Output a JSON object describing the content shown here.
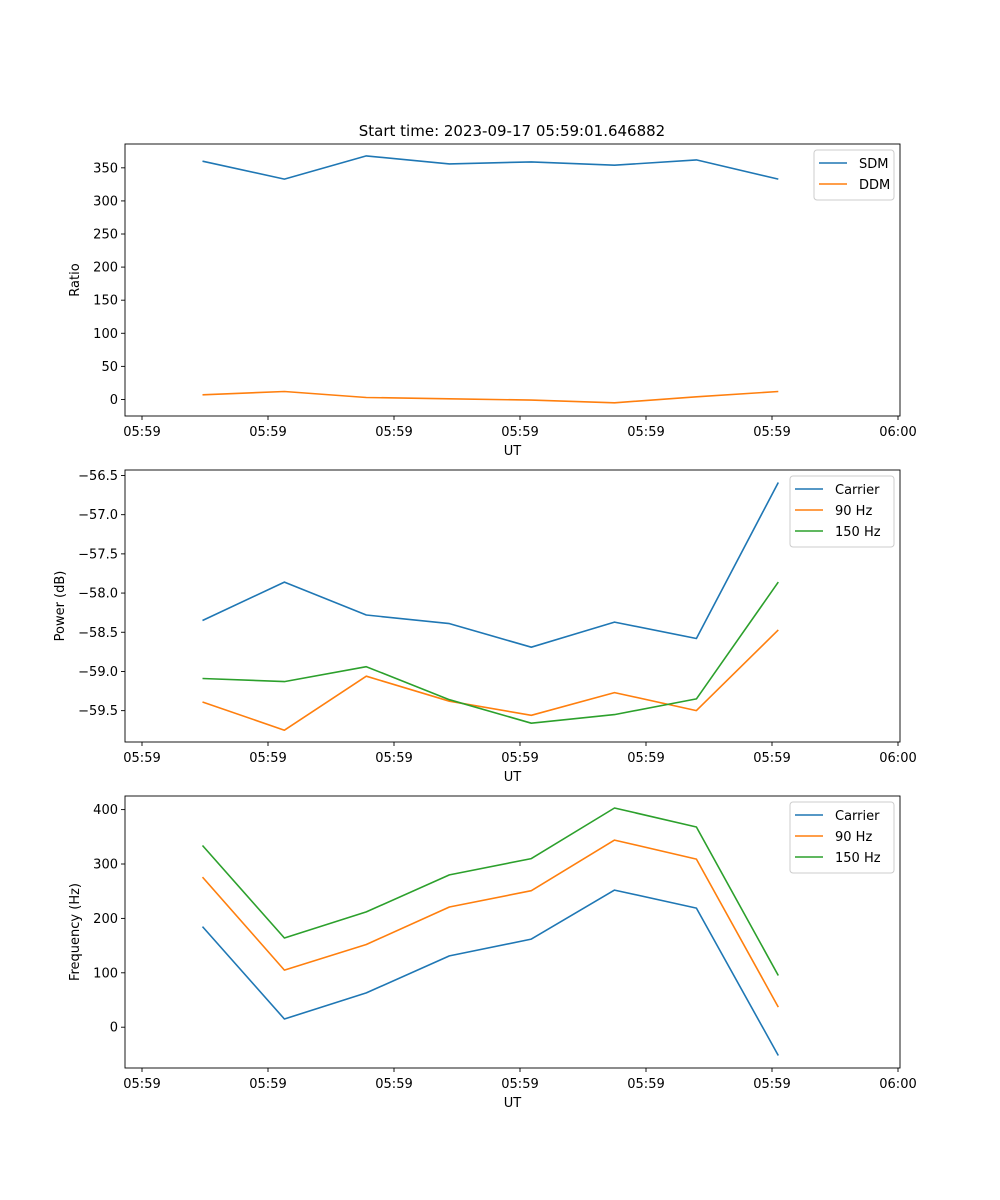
{
  "figure": {
    "title": "Start time: 2023-09-17 05:59:01.646882"
  },
  "chart_data": [
    {
      "type": "line",
      "title": "Start time: 2023-09-17 05:59:01.646882",
      "xlabel": "UT",
      "ylabel": "Ratio",
      "x_ticks": [
        "05:59",
        "05:59",
        "05:59",
        "05:59",
        "05:59",
        "05:59",
        "06:00"
      ],
      "xlim": [
        0,
        6
      ],
      "ylim": [
        -25,
        386
      ],
      "y_ticks": [
        0,
        50,
        100,
        150,
        200,
        250,
        300,
        350
      ],
      "x": [
        0.48,
        1.13,
        1.78,
        2.44,
        3.09,
        3.75,
        4.4,
        5.05
      ],
      "legend_position": "top-right",
      "series": [
        {
          "name": "SDM",
          "color": "#1f77b4",
          "values": [
            360,
            333,
            368,
            356,
            359,
            354,
            362,
            333
          ]
        },
        {
          "name": "DDM",
          "color": "#ff7f0e",
          "values": [
            7,
            12,
            3,
            1,
            -1,
            -5,
            4,
            12
          ]
        }
      ]
    },
    {
      "type": "line",
      "title": "",
      "xlabel": "UT",
      "ylabel": "Power (dB)",
      "x_ticks": [
        "05:59",
        "05:59",
        "05:59",
        "05:59",
        "05:59",
        "05:59",
        "06:00"
      ],
      "xlim": [
        0,
        6
      ],
      "ylim": [
        -59.9,
        -56.43
      ],
      "y_ticks": [
        "-56.5",
        "-57.0",
        "-57.5",
        "-58.0",
        "-58.5",
        "-59.0",
        "-59.5"
      ],
      "y_tick_values": [
        -56.5,
        -57.0,
        -57.5,
        -58.0,
        -58.5,
        -59.0,
        -59.5
      ],
      "x": [
        0.48,
        1.13,
        1.78,
        2.44,
        3.09,
        3.75,
        4.4,
        5.05
      ],
      "legend_position": "top-right",
      "series": [
        {
          "name": "Carrier",
          "color": "#1f77b4",
          "values": [
            -58.35,
            -57.86,
            -58.28,
            -58.39,
            -58.69,
            -58.37,
            -58.58,
            -56.59
          ]
        },
        {
          "name": "90 Hz",
          "color": "#ff7f0e",
          "values": [
            -59.39,
            -59.75,
            -59.06,
            -59.38,
            -59.56,
            -59.27,
            -59.5,
            -58.47
          ]
        },
        {
          "name": "150 Hz",
          "color": "#2ca02c",
          "values": [
            -59.09,
            -59.13,
            -58.94,
            -59.36,
            -59.66,
            -59.55,
            -59.35,
            -57.86
          ]
        }
      ]
    },
    {
      "type": "line",
      "title": "",
      "xlabel": "UT",
      "ylabel": "Frequency (Hz)",
      "x_ticks": [
        "05:59",
        "05:59",
        "05:59",
        "05:59",
        "05:59",
        "05:59",
        "06:00"
      ],
      "xlim": [
        0,
        6
      ],
      "ylim": [
        -75,
        425
      ],
      "y_ticks": [
        0,
        100,
        200,
        300,
        400
      ],
      "x": [
        0.48,
        1.13,
        1.78,
        2.44,
        3.09,
        3.75,
        4.4,
        5.05
      ],
      "legend_position": "top-right",
      "series": [
        {
          "name": "Carrier",
          "color": "#1f77b4",
          "values": [
            185,
            15,
            63,
            131,
            162,
            252,
            219,
            -52
          ]
        },
        {
          "name": "90 Hz",
          "color": "#ff7f0e",
          "values": [
            276,
            105,
            152,
            221,
            251,
            344,
            309,
            37
          ]
        },
        {
          "name": "150 Hz",
          "color": "#2ca02c",
          "values": [
            334,
            164,
            212,
            280,
            310,
            403,
            368,
            95
          ]
        }
      ]
    }
  ]
}
